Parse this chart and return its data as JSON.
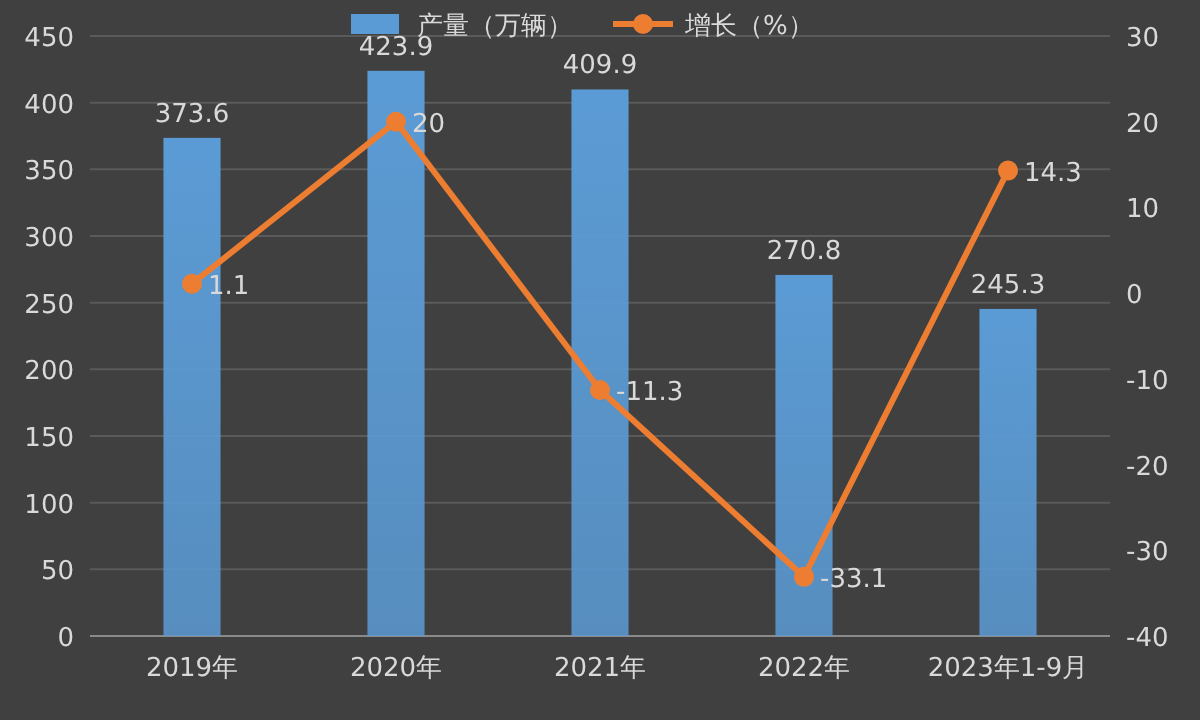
{
  "chart_data": {
    "type": "bar",
    "categories": [
      "2019年",
      "2020年",
      "2021年",
      "2022年",
      "2023年1-9月"
    ],
    "series": [
      {
        "name": "产量（万辆）",
        "color": "#5b9bd5",
        "values": [
          373.6,
          423.9,
          409.9,
          270.8,
          245.3
        ]
      },
      {
        "name": "增长（%）",
        "type": "line",
        "axis": "y2",
        "color": "#ed7d31",
        "values": [
          1.1,
          20,
          -11.3,
          -33.1,
          14.3
        ]
      }
    ],
    "ylim": [
      0,
      450
    ],
    "yticks": [
      0,
      50,
      100,
      150,
      200,
      250,
      300,
      350,
      400,
      450
    ],
    "y2lim": [
      -40,
      30
    ],
    "y2ticks": [
      -40,
      -30,
      -20,
      -10,
      0,
      10,
      20,
      30
    ],
    "grid": "y",
    "legend": "top",
    "data_labels": true,
    "marker": "circle",
    "line_style": "solid"
  }
}
